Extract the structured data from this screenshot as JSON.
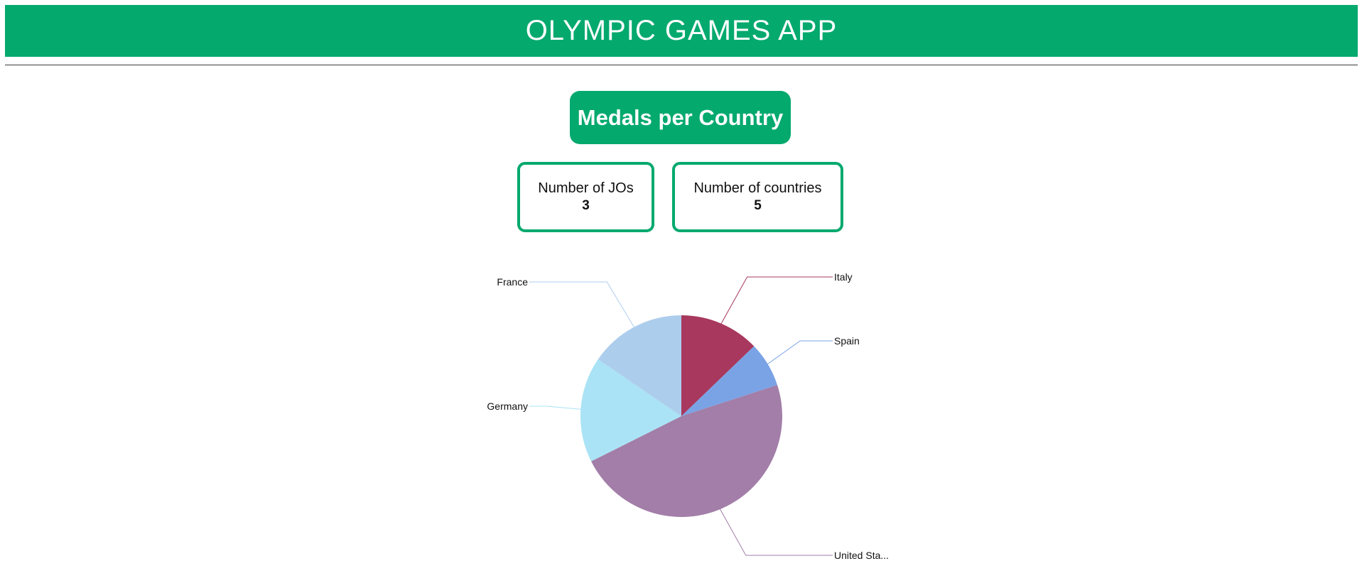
{
  "app": {
    "title": "OLYMPIC GAMES APP",
    "brand_color": "#04a96e"
  },
  "page": {
    "title": "Medals per Country"
  },
  "stats": {
    "jos": {
      "label": "Number of JOs",
      "value": "3"
    },
    "countries": {
      "label": "Number of countries",
      "value": "5"
    }
  },
  "chart_data": {
    "type": "pie",
    "title": "",
    "legend": "none",
    "slices": [
      {
        "label": "Italy",
        "display_label": "Italy",
        "value": 96,
        "color": "#a8385d"
      },
      {
        "label": "Spain",
        "display_label": "Spain",
        "value": 54,
        "color": "#7aa3e5"
      },
      {
        "label": "United States",
        "display_label": "United Sta...",
        "value": 357,
        "color": "#a27ea8"
      },
      {
        "label": "Germany",
        "display_label": "Germany",
        "value": 127,
        "color": "#aae3f5"
      },
      {
        "label": "France",
        "display_label": "France",
        "value": 116,
        "color": "#adcded"
      }
    ]
  }
}
